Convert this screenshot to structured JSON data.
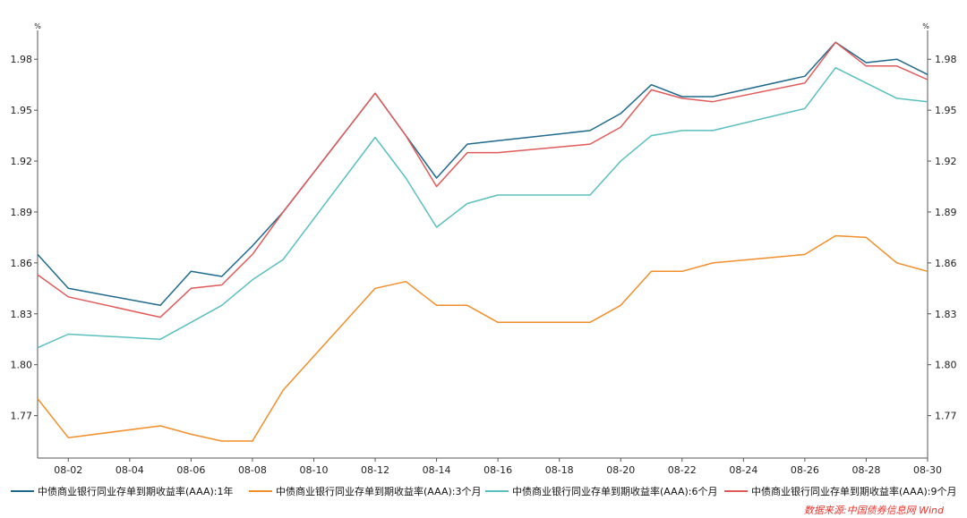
{
  "chart_data": {
    "type": "line",
    "title": "",
    "xlabel": "",
    "ylabel": "%",
    "ylabel_right": "%",
    "ylim": [
      1.745,
      1.997
    ],
    "yticks": [
      1.77,
      1.8,
      1.83,
      1.86,
      1.89,
      1.92,
      1.95,
      1.98
    ],
    "ytick_labels": [
      "1.77",
      "1.80",
      "1.83",
      "1.86",
      "1.89",
      "1.92",
      "1.95",
      "1.98"
    ],
    "xlim": [
      1,
      30
    ],
    "xticks": [
      2,
      4,
      6,
      8,
      10,
      12,
      14,
      16,
      18,
      20,
      22,
      24,
      26,
      28,
      30
    ],
    "xtick_labels": [
      "08-02",
      "08-04",
      "08-06",
      "08-08",
      "08-10",
      "08-12",
      "08-14",
      "08-16",
      "08-18",
      "08-20",
      "08-22",
      "08-24",
      "08-26",
      "08-28",
      "08-30"
    ],
    "grid": false,
    "legend_position": "bottom",
    "x": [
      1,
      2,
      5,
      6,
      7,
      8,
      9,
      12,
      13,
      14,
      15,
      16,
      19,
      20,
      21,
      22,
      23,
      26,
      27,
      28,
      29,
      30
    ],
    "series": [
      {
        "name": "中债商业银行同业存单到期收益率(AAA):1年",
        "color": "#1f6a8c",
        "values": [
          1.865,
          1.845,
          1.835,
          1.855,
          1.852,
          1.87,
          1.89,
          1.96,
          1.935,
          1.91,
          1.93,
          1.932,
          1.938,
          1.948,
          1.965,
          1.958,
          1.958,
          1.97,
          1.99,
          1.978,
          1.98,
          1.971
        ]
      },
      {
        "name": "中债商业银行同业存单到期收益率(AAA):3个月",
        "color": "#f28e2b",
        "values": [
          1.78,
          1.757,
          1.764,
          1.759,
          1.755,
          1.755,
          1.785,
          1.845,
          1.849,
          1.835,
          1.835,
          1.825,
          1.825,
          1.835,
          1.855,
          1.855,
          1.86,
          1.865,
          1.876,
          1.875,
          1.86,
          1.855
        ]
      },
      {
        "name": "中债商业银行同业存单到期收益率(AAA):6个月",
        "color": "#5bbfbf",
        "values": [
          1.81,
          1.818,
          1.815,
          1.825,
          1.835,
          1.85,
          1.862,
          1.934,
          1.91,
          1.881,
          1.895,
          1.9,
          1.9,
          1.92,
          1.935,
          1.938,
          1.938,
          1.951,
          1.975,
          1.966,
          1.957,
          1.955
        ]
      },
      {
        "name": "中债商业银行同业存单到期收益率(AAA):9个月",
        "color": "#e05a5a",
        "values": [
          1.853,
          1.84,
          1.828,
          1.845,
          1.847,
          1.865,
          1.89,
          1.96,
          1.935,
          1.905,
          1.925,
          1.925,
          1.93,
          1.94,
          1.962,
          1.957,
          1.955,
          1.966,
          1.99,
          1.976,
          1.976,
          1.968
        ]
      }
    ]
  },
  "source_text": "数据来源:中国债券信息网 Wind"
}
